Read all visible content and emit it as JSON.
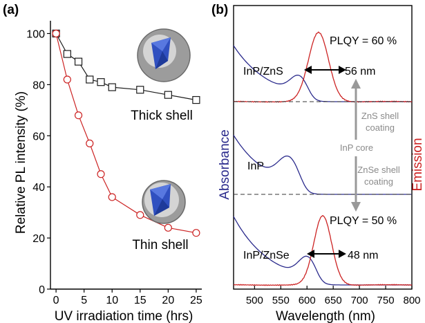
{
  "chart_data": [
    {
      "type": "line",
      "panel_label": "(a)",
      "xlabel": "UV irradiation time (hrs)",
      "ylabel": "Relative PL intensity (%)",
      "xlim": [
        -1,
        26
      ],
      "ylim": [
        0,
        105
      ],
      "xticks": [
        0,
        5,
        10,
        15,
        20,
        25
      ],
      "yticks": [
        0,
        20,
        40,
        60,
        80,
        100
      ],
      "series": [
        {
          "name": "Thick shell",
          "color": "#1a1a1a",
          "marker": "square",
          "points": [
            [
              0,
              100
            ],
            [
              2,
              92
            ],
            [
              4,
              89
            ],
            [
              6,
              82
            ],
            [
              8,
              81
            ],
            [
              10,
              79
            ],
            [
              15,
              78
            ],
            [
              20,
              76
            ],
            [
              25,
              74
            ]
          ]
        },
        {
          "name": "Thin shell",
          "color": "#cc2222",
          "marker": "circle",
          "points": [
            [
              0,
              100
            ],
            [
              2,
              82
            ],
            [
              4,
              68
            ],
            [
              6,
              57
            ],
            [
              8,
              45
            ],
            [
              10,
              36
            ],
            [
              15,
              29
            ],
            [
              20,
              24
            ],
            [
              25,
              22
            ]
          ]
        }
      ]
    },
    {
      "type": "line",
      "panel_label": "(b)",
      "xlabel": "Wavelength (nm)",
      "ylabel_left": "Absorbance",
      "ylabel_right": "Emission",
      "xlim": [
        460,
        800
      ],
      "xticks": [
        500,
        550,
        600,
        650,
        700,
        750,
        800
      ],
      "colors": {
        "absorbance": "#2a2a8c",
        "emission": "#cc2222",
        "arrow": "#999999"
      },
      "panels": [
        {
          "sample": "InP/ZnS",
          "plqy": "PLQY = 60 %",
          "fwhm": "56 nm",
          "emission_peak_nm": 622
        },
        {
          "sample": "InP"
        },
        {
          "sample": "InP/ZnSe",
          "plqy": "PLQY = 50 %",
          "fwhm": "48 nm",
          "emission_peak_nm": 630
        }
      ],
      "annotations": {
        "zns_coating": "ZnS shell coating",
        "core": "InP core",
        "znse_coating": "ZnSe shell coating"
      }
    }
  ]
}
